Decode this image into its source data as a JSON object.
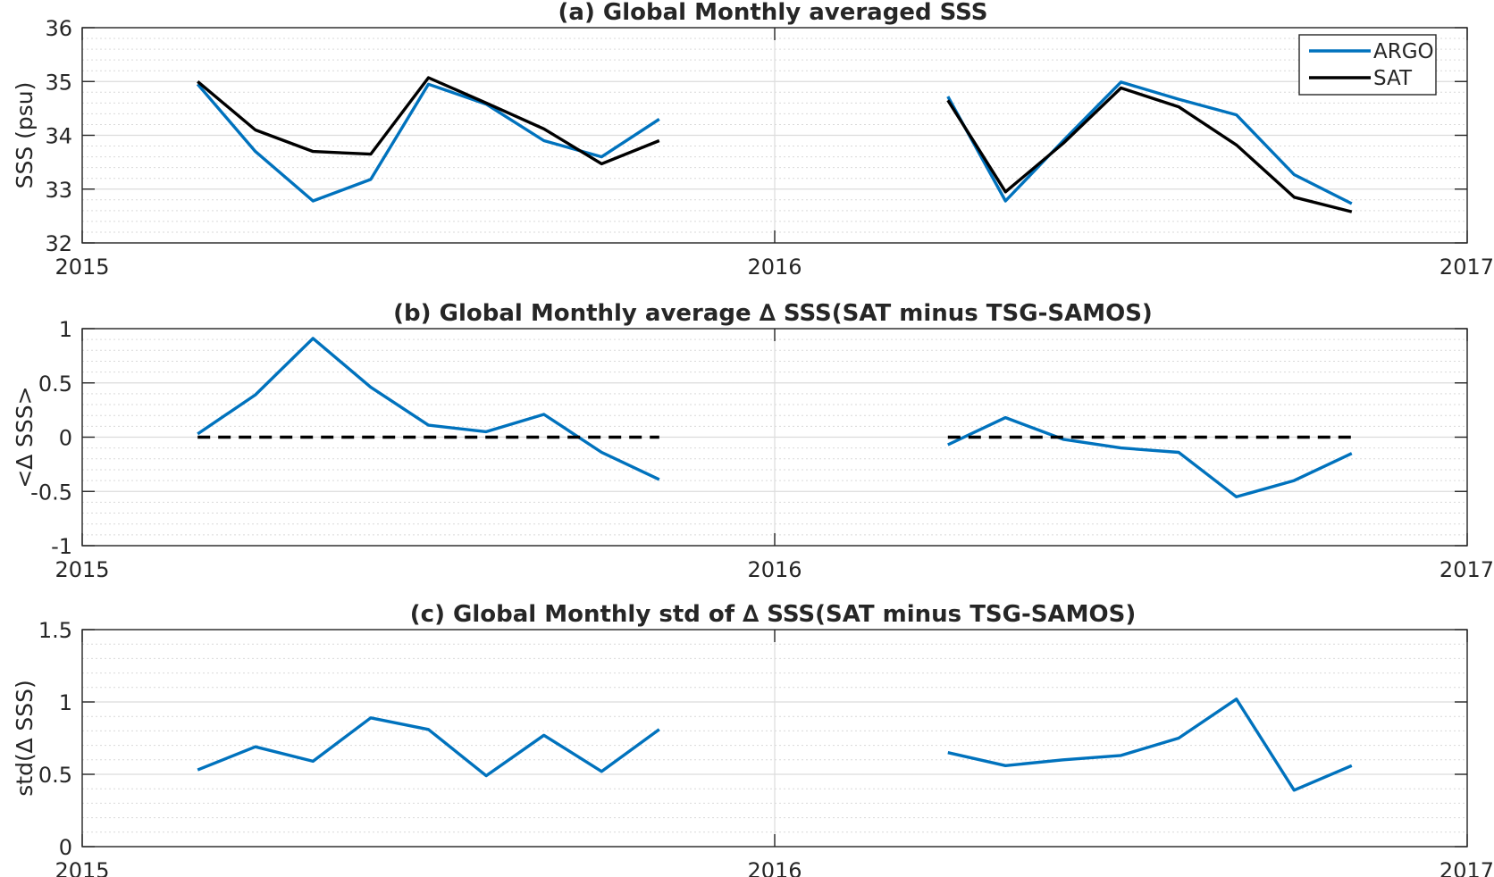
{
  "chart_data": [
    {
      "type": "line",
      "title": "(a) Global Monthly averaged SSS",
      "xlabel": "",
      "ylabel": "SSS (psu)",
      "xlim": [
        2015,
        2017
      ],
      "ylim": [
        32,
        36
      ],
      "xticks": [
        "2015",
        "2016",
        "2017"
      ],
      "yticks": [
        "32",
        "33",
        "34",
        "35",
        "36"
      ],
      "grid": true,
      "legend": "top-right",
      "series": [
        {
          "name": "ARGO",
          "color": "#0072BD",
          "style": "solid",
          "segments": [
            {
              "x": [
                "2015-03",
                "2015-04",
                "2015-05",
                "2015-06",
                "2015-07",
                "2015-08",
                "2015-09",
                "2015-10",
                "2015-11"
              ],
              "y": [
                34.95,
                33.7,
                32.78,
                33.18,
                34.95,
                34.58,
                33.9,
                33.6,
                34.3
              ]
            },
            {
              "x": [
                "2016-04",
                "2016-05",
                "2016-06",
                "2016-07",
                "2016-08",
                "2016-09",
                "2016-10",
                "2016-11"
              ],
              "y": [
                34.72,
                32.78,
                33.9,
                34.99,
                34.67,
                34.38,
                33.27,
                32.73
              ]
            }
          ]
        },
        {
          "name": "SAT",
          "color": "#000000",
          "style": "solid",
          "segments": [
            {
              "x": [
                "2015-03",
                "2015-04",
                "2015-05",
                "2015-06",
                "2015-07",
                "2015-08",
                "2015-09",
                "2015-10",
                "2015-11"
              ],
              "y": [
                35.0,
                34.1,
                33.7,
                33.65,
                35.07,
                34.6,
                34.12,
                33.47,
                33.9
              ]
            },
            {
              "x": [
                "2016-04",
                "2016-05",
                "2016-06",
                "2016-07",
                "2016-08",
                "2016-09",
                "2016-10",
                "2016-11"
              ],
              "y": [
                34.65,
                32.95,
                33.85,
                34.88,
                34.53,
                33.82,
                32.85,
                32.58
              ]
            }
          ]
        }
      ]
    },
    {
      "type": "line",
      "title": "(b) Global Monthly average ∆ SSS(SAT minus TSG-SAMOS)",
      "xlabel": "",
      "ylabel": "<∆ SSS>",
      "xlim": [
        2015,
        2017
      ],
      "ylim": [
        -1,
        1
      ],
      "xticks": [
        "2015",
        "2016",
        "2017"
      ],
      "yticks": [
        "-1",
        "-0.5",
        "0",
        "0.5",
        "1"
      ],
      "grid": true,
      "series": [
        {
          "color": "#0072BD",
          "style": "solid",
          "segments": [
            {
              "x": [
                "2015-03",
                "2015-04",
                "2015-05",
                "2015-06",
                "2015-07",
                "2015-08",
                "2015-09",
                "2015-10",
                "2015-11"
              ],
              "y": [
                0.03,
                0.39,
                0.91,
                0.46,
                0.11,
                0.05,
                0.21,
                -0.14,
                -0.39
              ]
            },
            {
              "x": [
                "2016-04",
                "2016-05",
                "2016-06",
                "2016-07",
                "2016-08",
                "2016-09",
                "2016-10",
                "2016-11"
              ],
              "y": [
                -0.07,
                0.18,
                -0.02,
                -0.1,
                -0.14,
                -0.55,
                -0.4,
                -0.15
              ]
            }
          ]
        },
        {
          "color": "#000000",
          "style": "dashed",
          "segments": [
            {
              "x": [
                "2015-03",
                "2015-11"
              ],
              "y": [
                0,
                0
              ]
            },
            {
              "x": [
                "2016-04",
                "2016-11"
              ],
              "y": [
                0,
                0
              ]
            }
          ]
        }
      ]
    },
    {
      "type": "line",
      "title": "(c) Global Monthly std of ∆ SSS(SAT minus TSG-SAMOS)",
      "xlabel": "",
      "ylabel": "std(∆ SSS)",
      "xlim": [
        2015,
        2017
      ],
      "ylim": [
        0,
        1.5
      ],
      "xticks": [
        "2015",
        "2016",
        "2017"
      ],
      "yticks": [
        "0",
        "0.5",
        "1",
        "1.5"
      ],
      "grid": true,
      "series": [
        {
          "color": "#0072BD",
          "style": "solid",
          "segments": [
            {
              "x": [
                "2015-03",
                "2015-04",
                "2015-05",
                "2015-06",
                "2015-07",
                "2015-08",
                "2015-09",
                "2015-10",
                "2015-11"
              ],
              "y": [
                0.53,
                0.69,
                0.59,
                0.89,
                0.81,
                0.49,
                0.77,
                0.52,
                0.81
              ]
            },
            {
              "x": [
                "2016-04",
                "2016-05",
                "2016-06",
                "2016-07",
                "2016-08",
                "2016-09",
                "2016-10",
                "2016-11"
              ],
              "y": [
                0.65,
                0.56,
                0.6,
                0.63,
                0.75,
                1.02,
                0.39,
                0.56
              ]
            }
          ]
        }
      ]
    }
  ]
}
